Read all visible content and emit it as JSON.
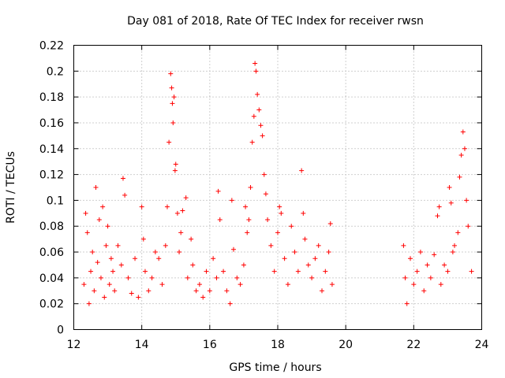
{
  "chart_data": {
    "type": "scatter",
    "title": "Day 081 of 2018, Rate Of TEC Index for receiver rwsn",
    "xlabel": "GPS time / hours",
    "ylabel": "ROTI / TECUs",
    "xlim": [
      12,
      24
    ],
    "ylim": [
      0,
      0.22
    ],
    "xticks": [
      "12",
      "14",
      "16",
      "18",
      "20",
      "22",
      "24"
    ],
    "yticks": [
      "0",
      "0.02",
      "0.04",
      "0.06",
      "0.08",
      "0.1",
      "0.12",
      "0.14",
      "0.16",
      "0.18",
      "0.2",
      "0.22"
    ],
    "grid": true,
    "marker": "+",
    "color": "#ff0000",
    "series": [
      {
        "name": "ROTI",
        "points": [
          [
            12.3,
            0.035
          ],
          [
            12.35,
            0.09
          ],
          [
            12.4,
            0.075
          ],
          [
            12.45,
            0.02
          ],
          [
            12.5,
            0.045
          ],
          [
            12.55,
            0.06
          ],
          [
            12.6,
            0.03
          ],
          [
            12.65,
            0.11
          ],
          [
            12.7,
            0.052
          ],
          [
            12.75,
            0.085
          ],
          [
            12.8,
            0.04
          ],
          [
            12.85,
            0.095
          ],
          [
            12.9,
            0.025
          ],
          [
            12.95,
            0.065
          ],
          [
            13.0,
            0.08
          ],
          [
            13.05,
            0.035
          ],
          [
            13.1,
            0.055
          ],
          [
            13.15,
            0.045
          ],
          [
            13.2,
            0.03
          ],
          [
            13.3,
            0.065
          ],
          [
            13.4,
            0.05
          ],
          [
            13.45,
            0.117
          ],
          [
            13.5,
            0.104
          ],
          [
            13.6,
            0.04
          ],
          [
            13.7,
            0.028
          ],
          [
            13.8,
            0.055
          ],
          [
            13.9,
            0.025
          ],
          [
            14.0,
            0.095
          ],
          [
            14.05,
            0.07
          ],
          [
            14.1,
            0.045
          ],
          [
            14.2,
            0.03
          ],
          [
            14.3,
            0.04
          ],
          [
            14.4,
            0.06
          ],
          [
            14.5,
            0.055
          ],
          [
            14.6,
            0.035
          ],
          [
            14.7,
            0.065
          ],
          [
            14.75,
            0.095
          ],
          [
            14.8,
            0.145
          ],
          [
            14.85,
            0.198
          ],
          [
            14.88,
            0.187
          ],
          [
            14.9,
            0.175
          ],
          [
            14.92,
            0.16
          ],
          [
            14.95,
            0.18
          ],
          [
            14.98,
            0.123
          ],
          [
            15.0,
            0.128
          ],
          [
            15.05,
            0.09
          ],
          [
            15.1,
            0.06
          ],
          [
            15.15,
            0.075
          ],
          [
            15.2,
            0.092
          ],
          [
            15.3,
            0.102
          ],
          [
            15.35,
            0.04
          ],
          [
            15.45,
            0.07
          ],
          [
            15.5,
            0.05
          ],
          [
            15.6,
            0.03
          ],
          [
            15.7,
            0.035
          ],
          [
            15.8,
            0.025
          ],
          [
            15.9,
            0.045
          ],
          [
            16.0,
            0.03
          ],
          [
            16.1,
            0.055
          ],
          [
            16.2,
            0.04
          ],
          [
            16.25,
            0.107
          ],
          [
            16.3,
            0.085
          ],
          [
            16.4,
            0.045
          ],
          [
            16.5,
            0.03
          ],
          [
            16.6,
            0.02
          ],
          [
            16.65,
            0.1
          ],
          [
            16.7,
            0.062
          ],
          [
            16.8,
            0.04
          ],
          [
            16.9,
            0.035
          ],
          [
            17.0,
            0.05
          ],
          [
            17.05,
            0.095
          ],
          [
            17.1,
            0.075
          ],
          [
            17.15,
            0.085
          ],
          [
            17.2,
            0.11
          ],
          [
            17.25,
            0.145
          ],
          [
            17.3,
            0.165
          ],
          [
            17.33,
            0.206
          ],
          [
            17.36,
            0.2
          ],
          [
            17.4,
            0.182
          ],
          [
            17.45,
            0.17
          ],
          [
            17.5,
            0.158
          ],
          [
            17.55,
            0.15
          ],
          [
            17.6,
            0.12
          ],
          [
            17.65,
            0.105
          ],
          [
            17.7,
            0.085
          ],
          [
            17.8,
            0.065
          ],
          [
            17.9,
            0.045
          ],
          [
            18.0,
            0.075
          ],
          [
            18.05,
            0.095
          ],
          [
            18.1,
            0.09
          ],
          [
            18.2,
            0.055
          ],
          [
            18.3,
            0.035
          ],
          [
            18.4,
            0.08
          ],
          [
            18.5,
            0.06
          ],
          [
            18.6,
            0.045
          ],
          [
            18.7,
            0.123
          ],
          [
            18.75,
            0.09
          ],
          [
            18.8,
            0.07
          ],
          [
            18.9,
            0.05
          ],
          [
            19.0,
            0.04
          ],
          [
            19.1,
            0.055
          ],
          [
            19.2,
            0.065
          ],
          [
            19.3,
            0.03
          ],
          [
            19.4,
            0.045
          ],
          [
            19.5,
            0.06
          ],
          [
            19.55,
            0.082
          ],
          [
            19.6,
            0.035
          ],
          [
            21.7,
            0.065
          ],
          [
            21.75,
            0.04
          ],
          [
            21.8,
            0.02
          ],
          [
            21.9,
            0.055
          ],
          [
            22.0,
            0.035
          ],
          [
            22.1,
            0.045
          ],
          [
            22.2,
            0.06
          ],
          [
            22.3,
            0.03
          ],
          [
            22.4,
            0.05
          ],
          [
            22.5,
            0.04
          ],
          [
            22.6,
            0.058
          ],
          [
            22.7,
            0.088
          ],
          [
            22.75,
            0.095
          ],
          [
            22.8,
            0.035
          ],
          [
            22.9,
            0.05
          ],
          [
            23.0,
            0.045
          ],
          [
            23.05,
            0.11
          ],
          [
            23.1,
            0.098
          ],
          [
            23.15,
            0.06
          ],
          [
            23.2,
            0.065
          ],
          [
            23.3,
            0.075
          ],
          [
            23.35,
            0.118
          ],
          [
            23.4,
            0.135
          ],
          [
            23.45,
            0.153
          ],
          [
            23.5,
            0.14
          ],
          [
            23.55,
            0.1
          ],
          [
            23.6,
            0.08
          ],
          [
            23.7,
            0.045
          ]
        ]
      }
    ]
  }
}
